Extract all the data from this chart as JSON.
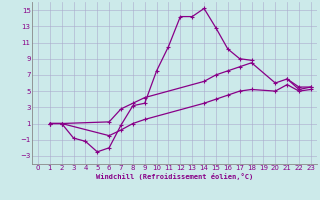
{
  "xlabel": "Windchill (Refroidissement éolien,°C)",
  "bg_color": "#cceaea",
  "line_color": "#880088",
  "grid_color": "#aaaacc",
  "xlim": [
    -0.5,
    23.5
  ],
  "ylim": [
    -4,
    16
  ],
  "xticks": [
    0,
    1,
    2,
    3,
    4,
    5,
    6,
    7,
    8,
    9,
    10,
    11,
    12,
    13,
    14,
    15,
    16,
    17,
    18,
    19,
    20,
    21,
    22,
    23
  ],
  "yticks": [
    -3,
    -1,
    1,
    3,
    5,
    7,
    9,
    11,
    13,
    15
  ],
  "line1_x": [
    1,
    2,
    3,
    4,
    5,
    6,
    7,
    8,
    9,
    10,
    11,
    12,
    13,
    14,
    15,
    16,
    17,
    18,
    19,
    20,
    21,
    22,
    23
  ],
  "line1_y": [
    1,
    1,
    -0.8,
    -1.2,
    -2.5,
    -2.0,
    0.8,
    3.2,
    3.5,
    7.5,
    10.5,
    14.2,
    14.2,
    15.2,
    12.8,
    10.2,
    9.0,
    8.8,
    null,
    null,
    6.5,
    5.5,
    5.5
  ],
  "line2_x": [
    1,
    2,
    6,
    7,
    8,
    9,
    14,
    15,
    16,
    17,
    18,
    20,
    21,
    22,
    23
  ],
  "line2_y": [
    1,
    1,
    1.2,
    2.8,
    3.5,
    4.2,
    6.2,
    7.0,
    7.5,
    8.0,
    8.5,
    6.0,
    6.5,
    5.2,
    5.5
  ],
  "line3_x": [
    1,
    2,
    6,
    7,
    8,
    9,
    14,
    15,
    16,
    17,
    18,
    20,
    21,
    22,
    23
  ],
  "line3_y": [
    1,
    1,
    -0.5,
    0.2,
    1.0,
    1.5,
    3.5,
    4.0,
    4.5,
    5.0,
    5.2,
    5.0,
    5.8,
    5.0,
    5.2
  ]
}
